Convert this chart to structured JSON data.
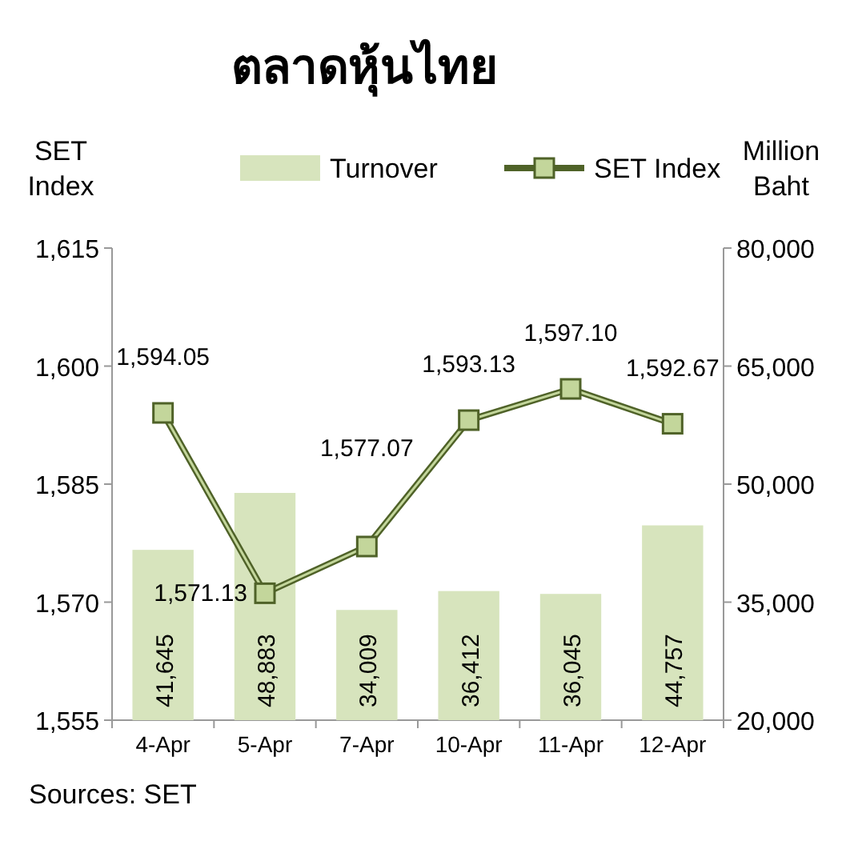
{
  "chart_data": {
    "type": "bar",
    "title": "ตลาดหุ้นไทย",
    "ylabel": "SET Index",
    "y2label": "Million Baht",
    "legend": "top",
    "categories": [
      "4-Apr",
      "5-Apr",
      "7-Apr",
      "10-Apr",
      "11-Apr",
      "12-Apr"
    ],
    "series": [
      {
        "name": "Turnover",
        "axis": "y2",
        "color": "#d7e4bd",
        "values": [
          41645,
          48883,
          34009,
          36412,
          36045,
          44757
        ],
        "value_labels": [
          "41,645",
          "48,883",
          "34,009",
          "36,412",
          "36,045",
          "44,757"
        ]
      },
      {
        "name": "SET Index",
        "type": "line",
        "axis": "y",
        "color": "#4f6228",
        "marker": "square",
        "values": [
          1594.05,
          1571.13,
          1577.07,
          1593.13,
          1597.1,
          1592.67
        ],
        "value_labels": [
          "1,594.05",
          "1,571.13",
          "1,577.07",
          "1,593.13",
          "1,597.10",
          "1,592.67"
        ]
      }
    ],
    "ylim": [
      1555,
      1615
    ],
    "yticks": [
      {
        "value": 1555,
        "label": "1,555"
      },
      {
        "value": 1570,
        "label": "1,570"
      },
      {
        "value": 1585,
        "label": "1,585"
      },
      {
        "value": 1600,
        "label": "1,600"
      },
      {
        "value": 1615,
        "label": "1,615"
      }
    ],
    "y2lim": [
      20000,
      80000
    ],
    "y2ticks": [
      {
        "value": 20000,
        "label": "20,000"
      },
      {
        "value": 35000,
        "label": "35,000"
      },
      {
        "value": 50000,
        "label": "50,000"
      },
      {
        "value": 65000,
        "label": "65,000"
      },
      {
        "value": 80000,
        "label": "80,000"
      }
    ],
    "annotations": [
      "Sources: SET"
    ]
  }
}
